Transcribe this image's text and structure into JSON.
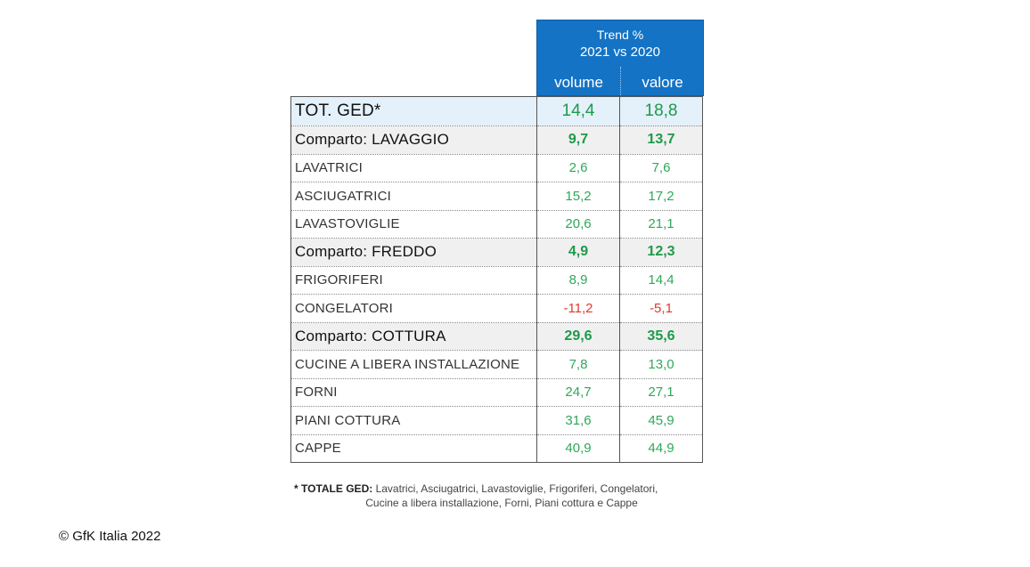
{
  "header": {
    "trend_title": "Trend %",
    "trend_subtitle": "2021 vs 2020",
    "col_volume": "volume",
    "col_valore": "valore"
  },
  "rows": [
    {
      "label": "TOT. GED*",
      "volume": "14,4",
      "valore": "18,8",
      "type": "total"
    },
    {
      "label": "Comparto: LAVAGGIO",
      "volume": "9,7",
      "valore": "13,7",
      "type": "section"
    },
    {
      "label": "LAVATRICI",
      "volume": "2,6",
      "valore": "7,6",
      "type": "item"
    },
    {
      "label": "ASCIUGATRICI",
      "volume": "15,2",
      "valore": "17,2",
      "type": "item"
    },
    {
      "label": "LAVASTOVIGLIE",
      "volume": "20,6",
      "valore": "21,1",
      "type": "item"
    },
    {
      "label": "Comparto: FREDDO",
      "volume": "4,9",
      "valore": "12,3",
      "type": "section"
    },
    {
      "label": "FRIGORIFERI",
      "volume": "8,9",
      "valore": "14,4",
      "type": "item"
    },
    {
      "label": "CONGELATORI",
      "volume": "-11,2",
      "valore": "-5,1",
      "type": "item"
    },
    {
      "label": "Comparto: COTTURA",
      "volume": "29,6",
      "valore": "35,6",
      "type": "section"
    },
    {
      "label": "CUCINE A LIBERA INSTALLAZIONE",
      "volume": "7,8",
      "valore": "13,0",
      "type": "item"
    },
    {
      "label": "FORNI",
      "volume": "24,7",
      "valore": "27,1",
      "type": "item"
    },
    {
      "label": "PIANI COTTURA",
      "volume": "31,6",
      "valore": "45,9",
      "type": "item"
    },
    {
      "label": "CAPPE",
      "volume": "40,9",
      "valore": "44,9",
      "type": "item"
    }
  ],
  "footnote": {
    "key": "* TOTALE GED:",
    "line1": " Lavatrici, Asciugatrici, Lavastoviglie, Frigoriferi, Congelatori,",
    "line2": "Cucine a libera installazione, Forni, Piani cottura e Cappe"
  },
  "copyright": "© GfK Italia 2022",
  "colors": {
    "header_bg": "#1473c5",
    "positive": "#2fa85a",
    "negative": "#e0392b",
    "total_bg": "#e4f1fb",
    "section_bg": "#f0f0f0"
  }
}
